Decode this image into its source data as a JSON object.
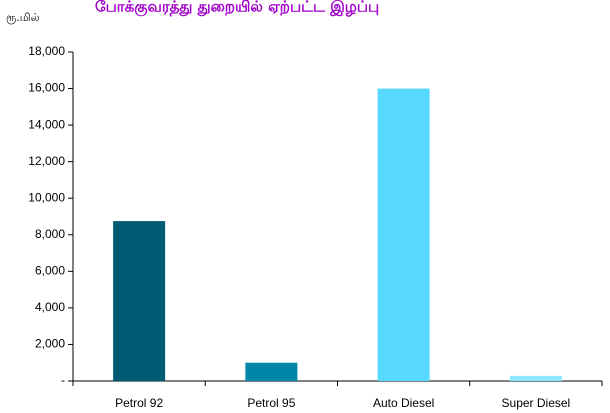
{
  "chart_data": {
    "type": "bar",
    "title": "போக்குவரத்து துறையில் ஏற்பட்ட இழப்பு",
    "unit_label": "ரூ.மில்",
    "xlabel": "",
    "ylabel": "",
    "categories": [
      "Petrol 92",
      "Petrol 95",
      "Auto Diesel",
      "Super Diesel"
    ],
    "values": [
      8750,
      1000,
      16000,
      280
    ],
    "bar_colors": [
      "#005b73",
      "#0086a6",
      "#57d9ff",
      "#8ee6ff"
    ],
    "ylim": [
      0,
      18000
    ],
    "yticks": [
      0,
      2000,
      4000,
      6000,
      8000,
      10000,
      12000,
      14000,
      16000,
      18000
    ],
    "ytick_labels": [
      "-",
      "2,000",
      "4,000",
      "6,000",
      "8,000",
      "10,000",
      "12,000",
      "14,000",
      "16,000",
      "18,000"
    ],
    "grid": false,
    "legend": "none",
    "title_color": "#a000c8"
  }
}
